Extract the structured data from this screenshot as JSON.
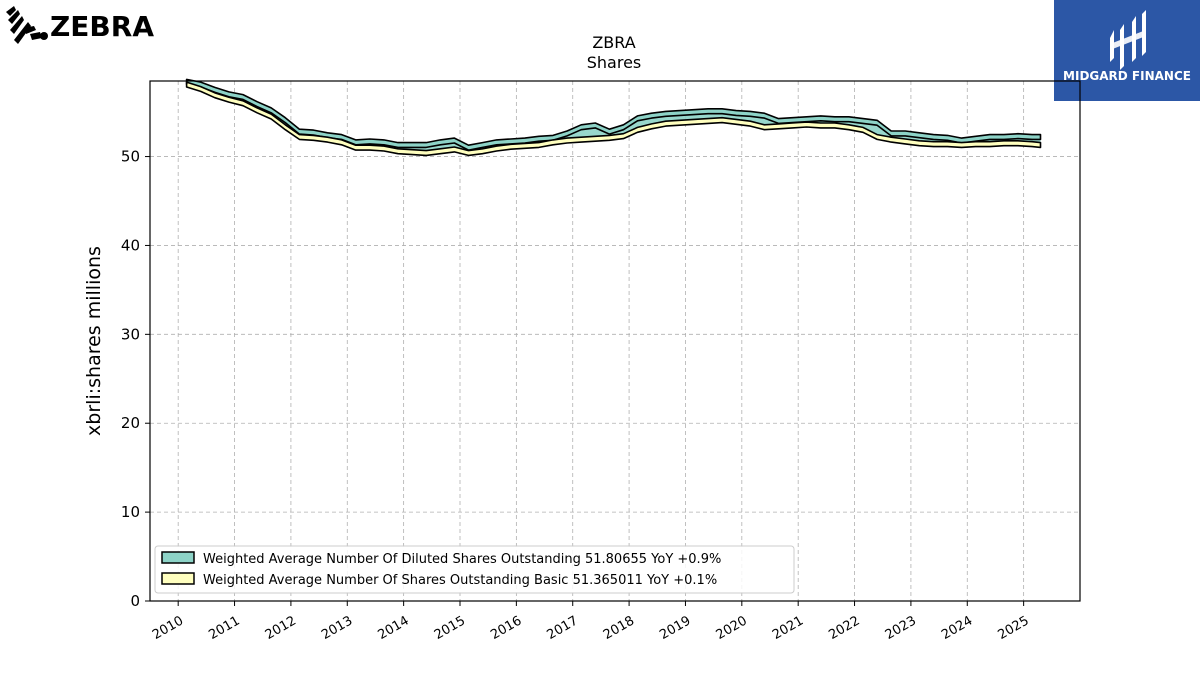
{
  "brand": {
    "logo_text": "ZEBRA",
    "badge_text": "MIDGARD FINANCE",
    "badge_color": "#2c57a6"
  },
  "chart_data": {
    "type": "area",
    "title": "ZBRA",
    "subtitle": "Shares",
    "ylabel": "xbrli:shares millions",
    "xlabel": "",
    "ylim": [
      0,
      58.5
    ],
    "yticks": [
      0,
      10,
      20,
      30,
      40,
      50
    ],
    "xticks": [
      "2010",
      "2011",
      "2012",
      "2013",
      "2014",
      "2015",
      "2016",
      "2017",
      "2018",
      "2019",
      "2020",
      "2021",
      "2022",
      "2023",
      "2024",
      "2025"
    ],
    "grid": true,
    "legend_position": "lower-left",
    "x": [
      2010.15,
      2010.4,
      2010.65,
      2010.9,
      2011.15,
      2011.4,
      2011.65,
      2011.9,
      2012.15,
      2012.4,
      2012.65,
      2012.9,
      2013.15,
      2013.4,
      2013.65,
      2013.9,
      2014.15,
      2014.4,
      2014.65,
      2014.9,
      2015.15,
      2015.4,
      2015.65,
      2015.9,
      2016.15,
      2016.4,
      2016.65,
      2016.9,
      2017.15,
      2017.4,
      2017.65,
      2017.9,
      2018.15,
      2018.4,
      2018.65,
      2018.9,
      2019.15,
      2019.4,
      2019.65,
      2019.9,
      2020.15,
      2020.4,
      2020.65,
      2020.9,
      2021.15,
      2021.4,
      2021.65,
      2021.9,
      2022.15,
      2022.4,
      2022.65,
      2022.9,
      2023.15,
      2023.4,
      2023.65,
      2023.9,
      2024.15,
      2024.4,
      2024.65,
      2024.9,
      2025.15,
      2025.3
    ],
    "series": [
      {
        "name": "Weighted Average Number Of Diluted Shares Outstanding",
        "legend_label": "Weighted Average Number Of Diluted Shares Outstanding  51.80655 YoY +0.9%",
        "color": "#8dd3c7",
        "values": [
          58.4,
          58.1,
          57.5,
          57.0,
          56.7,
          55.9,
          55.2,
          54.1,
          52.8,
          52.7,
          52.4,
          52.2,
          51.6,
          51.7,
          51.6,
          51.3,
          51.3,
          51.3,
          51.6,
          51.8,
          51.0,
          51.3,
          51.6,
          51.7,
          51.8,
          52.0,
          52.1,
          52.6,
          53.3,
          53.5,
          52.8,
          53.3,
          54.3,
          54.6,
          54.8,
          54.9,
          55.0,
          55.1,
          55.1,
          54.9,
          54.8,
          54.6,
          54.0,
          54.1,
          54.2,
          54.3,
          54.2,
          54.2,
          54.0,
          53.8,
          52.6,
          52.6,
          52.4,
          52.2,
          52.1,
          51.8,
          52.0,
          52.2,
          52.2,
          52.3,
          52.2,
          52.2
        ]
      },
      {
        "name": "Weighted Average Number Of Shares Outstanding Basic",
        "legend_label": "Weighted Average Number Of Shares Outstanding Basic  51.365011 YoY +0.1%",
        "color": "#ffffbf",
        "values": [
          58.1,
          57.6,
          56.9,
          56.4,
          56.0,
          55.2,
          54.5,
          53.3,
          52.2,
          52.1,
          51.9,
          51.6,
          51.0,
          51.0,
          50.9,
          50.6,
          50.5,
          50.4,
          50.6,
          50.8,
          50.4,
          50.6,
          50.9,
          51.1,
          51.2,
          51.3,
          51.6,
          51.8,
          51.9,
          52.0,
          52.1,
          52.3,
          53.0,
          53.4,
          53.7,
          53.8,
          53.9,
          54.0,
          54.1,
          53.9,
          53.7,
          53.3,
          53.4,
          53.5,
          53.6,
          53.5,
          53.5,
          53.3,
          53.0,
          52.2,
          51.9,
          51.7,
          51.5,
          51.4,
          51.4,
          51.3,
          51.4,
          51.4,
          51.5,
          51.5,
          51.4,
          51.3
        ]
      }
    ]
  }
}
